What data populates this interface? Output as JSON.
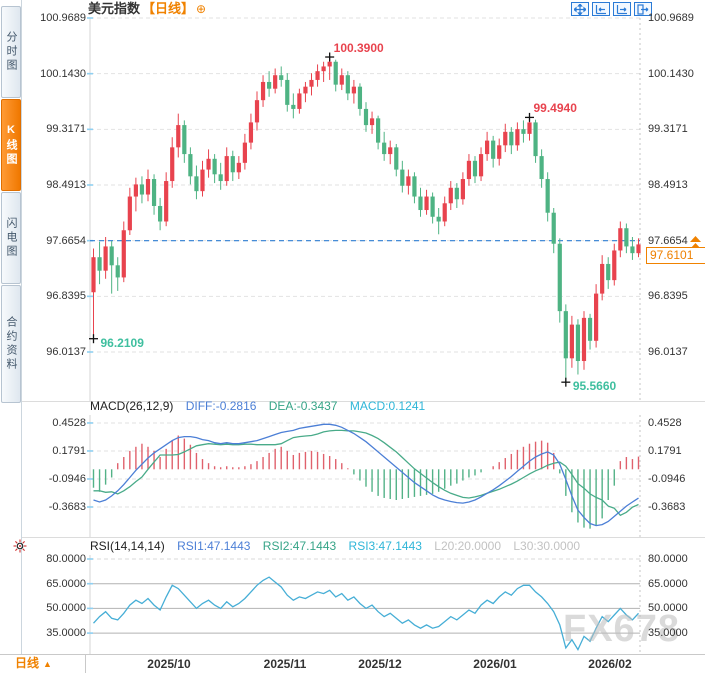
{
  "header": {
    "symbol": "美元指数",
    "period_tag": "【日线】",
    "add_icon": "⊕"
  },
  "sidebar": {
    "tabs": [
      {
        "label": "分时图",
        "active": false
      },
      {
        "label": "K线图",
        "active": true
      },
      {
        "label": "闪电图",
        "active": false
      },
      {
        "label": "合约资料",
        "active": false
      }
    ]
  },
  "toolbar": {
    "icons": [
      "pan",
      "fit-width",
      "fit-height",
      "exit"
    ]
  },
  "main_chart": {
    "y_labels": [
      "100.9689",
      "100.1430",
      "99.3171",
      "98.4913",
      "97.6654",
      "96.8395",
      "96.0137"
    ],
    "current_line_label": "97.6654",
    "last_price_label": "97.6101"
  },
  "x_axis": {
    "labels": [
      "2025/10",
      "2025/11",
      "2025/12",
      "2026/01",
      "2026/02"
    ]
  },
  "footer": {
    "period": "日线",
    "arrow": "▲"
  },
  "watermark": "FX678",
  "colors": {
    "up": "#e8434e",
    "down": "#4eb383",
    "accent": "#f08200",
    "price_line": "#2f7fd4",
    "diff": "#4c7fd6",
    "dea": "#49ab89",
    "rsi": "#46aed6",
    "annotation_low": "#3fbf9f"
  },
  "chart_data": {
    "type": "candlestick",
    "symbol": "美元指数",
    "period": "日线",
    "y_axis_labels": [
      "100.9689",
      "100.1430",
      "99.3171",
      "98.4913",
      "97.6654",
      "96.8395",
      "96.0137"
    ],
    "x_labels": [
      "2025/10",
      "2025/11",
      "2025/12",
      "2026/01",
      "2026/02"
    ],
    "current_price_line": 97.6654,
    "last_price": 97.6101,
    "markers": [
      {
        "index": 0,
        "type": "low",
        "label": "96.2109"
      },
      {
        "index": 39,
        "type": "high",
        "label": "100.3900"
      },
      {
        "index": 72,
        "type": "high",
        "label": "99.4940"
      },
      {
        "index": 78,
        "type": "low",
        "label": "95.5660"
      }
    ],
    "candles": [
      [
        96.9,
        97.55,
        96.2109,
        97.42
      ],
      [
        97.42,
        97.65,
        97.02,
        97.22
      ],
      [
        97.22,
        97.72,
        97.1,
        97.58
      ],
      [
        97.58,
        97.66,
        96.88,
        97.3
      ],
      [
        97.3,
        97.42,
        96.92,
        97.12
      ],
      [
        97.12,
        97.95,
        97.05,
        97.82
      ],
      [
        97.82,
        98.45,
        97.75,
        98.32
      ],
      [
        98.32,
        98.6,
        98.1,
        98.5
      ],
      [
        98.5,
        98.62,
        98.22,
        98.35
      ],
      [
        98.35,
        98.72,
        98.25,
        98.58
      ],
      [
        98.58,
        98.65,
        98.05,
        98.18
      ],
      [
        98.18,
        98.3,
        97.82,
        97.95
      ],
      [
        97.95,
        98.68,
        97.88,
        98.55
      ],
      [
        98.55,
        99.2,
        98.45,
        99.05
      ],
      [
        99.05,
        99.55,
        98.9,
        99.38
      ],
      [
        99.38,
        99.45,
        98.82,
        98.95
      ],
      [
        98.95,
        99.05,
        98.5,
        98.62
      ],
      [
        98.62,
        98.78,
        98.28,
        98.4
      ],
      [
        98.4,
        98.85,
        98.32,
        98.72
      ],
      [
        98.72,
        99.02,
        98.6,
        98.88
      ],
      [
        98.88,
        98.95,
        98.52,
        98.65
      ],
      [
        98.65,
        98.82,
        98.42,
        98.55
      ],
      [
        98.55,
        99.05,
        98.48,
        98.92
      ],
      [
        98.92,
        99.0,
        98.55,
        98.68
      ],
      [
        98.68,
        98.92,
        98.58,
        98.82
      ],
      [
        98.82,
        99.25,
        98.72,
        99.12
      ],
      [
        99.12,
        99.55,
        99.02,
        99.42
      ],
      [
        99.42,
        99.88,
        99.3,
        99.75
      ],
      [
        99.75,
        100.12,
        99.65,
        100.02
      ],
      [
        100.02,
        100.18,
        99.8,
        99.92
      ],
      [
        99.92,
        100.22,
        99.85,
        100.12
      ],
      [
        100.12,
        100.25,
        99.95,
        100.05
      ],
      [
        100.05,
        100.15,
        99.58,
        99.68
      ],
      [
        99.68,
        99.85,
        99.48,
        99.62
      ],
      [
        99.62,
        99.92,
        99.55,
        99.85
      ],
      [
        99.85,
        100.02,
        99.72,
        99.95
      ],
      [
        99.95,
        100.15,
        99.82,
        100.05
      ],
      [
        100.05,
        100.28,
        99.95,
        100.18
      ],
      [
        100.18,
        100.32,
        100.02,
        100.25
      ],
      [
        100.25,
        100.39,
        100.05,
        100.32
      ],
      [
        100.32,
        100.35,
        99.88,
        99.98
      ],
      [
        99.98,
        100.22,
        99.9,
        100.12
      ],
      [
        100.12,
        100.18,
        99.75,
        99.85
      ],
      [
        99.85,
        100.05,
        99.7,
        99.95
      ],
      [
        99.95,
        100.0,
        99.52,
        99.62
      ],
      [
        99.62,
        99.72,
        99.28,
        99.38
      ],
      [
        99.38,
        99.58,
        99.25,
        99.48
      ],
      [
        99.48,
        99.52,
        99.02,
        99.12
      ],
      [
        99.12,
        99.28,
        98.85,
        98.95
      ],
      [
        98.95,
        99.15,
        98.8,
        99.05
      ],
      [
        99.05,
        99.1,
        98.62,
        98.72
      ],
      [
        98.72,
        98.85,
        98.38,
        98.48
      ],
      [
        98.48,
        98.72,
        98.35,
        98.62
      ],
      [
        98.62,
        98.68,
        98.22,
        98.32
      ],
      [
        98.32,
        98.45,
        98.02,
        98.12
      ],
      [
        98.12,
        98.42,
        98.05,
        98.32
      ],
      [
        98.32,
        98.38,
        97.92,
        98.02
      ],
      [
        98.02,
        98.15,
        97.76,
        97.95
      ],
      [
        97.95,
        98.32,
        97.88,
        98.22
      ],
      [
        98.22,
        98.55,
        98.12,
        98.45
      ],
      [
        98.45,
        98.52,
        98.15,
        98.28
      ],
      [
        98.28,
        98.68,
        98.2,
        98.58
      ],
      [
        98.58,
        98.95,
        98.48,
        98.85
      ],
      [
        98.85,
        98.92,
        98.52,
        98.62
      ],
      [
        98.62,
        99.05,
        98.55,
        98.95
      ],
      [
        98.95,
        99.28,
        98.85,
        99.15
      ],
      [
        99.15,
        99.22,
        98.75,
        98.88
      ],
      [
        98.88,
        99.18,
        98.78,
        99.08
      ],
      [
        99.08,
        99.4,
        98.98,
        99.28
      ],
      [
        99.28,
        99.35,
        98.95,
        99.08
      ],
      [
        99.08,
        99.42,
        99.0,
        99.32
      ],
      [
        99.32,
        99.45,
        99.12,
        99.25
      ],
      [
        99.25,
        99.494,
        99.15,
        99.42
      ],
      [
        99.42,
        99.46,
        98.82,
        98.92
      ],
      [
        98.92,
        99.02,
        98.45,
        98.58
      ],
      [
        98.58,
        98.68,
        97.95,
        98.08
      ],
      [
        98.08,
        98.15,
        97.48,
        97.62
      ],
      [
        97.62,
        97.7,
        96.45,
        96.62
      ],
      [
        96.62,
        96.72,
        95.566,
        95.92
      ],
      [
        95.92,
        96.55,
        95.78,
        96.42
      ],
      [
        96.42,
        96.5,
        95.68,
        95.88
      ],
      [
        95.88,
        96.62,
        95.75,
        96.52
      ],
      [
        96.52,
        96.58,
        96.05,
        96.18
      ],
      [
        96.18,
        97.02,
        96.08,
        96.88
      ],
      [
        96.88,
        97.45,
        96.78,
        97.32
      ],
      [
        97.32,
        97.42,
        96.95,
        97.08
      ],
      [
        97.08,
        97.62,
        97.0,
        97.52
      ],
      [
        97.52,
        97.95,
        97.42,
        97.85
      ],
      [
        97.85,
        97.92,
        97.48,
        97.58
      ],
      [
        97.58,
        97.72,
        97.38,
        97.48
      ],
      [
        97.48,
        97.7,
        97.42,
        97.6101
      ]
    ],
    "macd": {
      "title": "MACD(26,12,9)",
      "diff_label": "DIFF:-0.2816",
      "dea_label": "DEA:-0.3437",
      "macd_label": "MACD:0.1241",
      "y_labels": [
        "0.4528",
        "0.1791",
        "-0.0946",
        "-0.3683"
      ],
      "diff": [
        -0.3,
        -0.32,
        -0.3,
        -0.26,
        -0.21,
        -0.15,
        -0.08,
        -0.01,
        0.05,
        0.11,
        0.16,
        0.2,
        0.24,
        0.28,
        0.31,
        0.32,
        0.32,
        0.31,
        0.29,
        0.28,
        0.26,
        0.25,
        0.26,
        0.25,
        0.25,
        0.26,
        0.27,
        0.28,
        0.3,
        0.32,
        0.34,
        0.36,
        0.37,
        0.38,
        0.4,
        0.41,
        0.42,
        0.43,
        0.44,
        0.44,
        0.43,
        0.41,
        0.38,
        0.35,
        0.31,
        0.27,
        0.22,
        0.17,
        0.12,
        0.07,
        0.02,
        -0.03,
        -0.08,
        -0.13,
        -0.17,
        -0.21,
        -0.25,
        -0.28,
        -0.3,
        -0.315,
        -0.325,
        -0.33,
        -0.32,
        -0.3,
        -0.27,
        -0.235,
        -0.2,
        -0.16,
        -0.115,
        -0.07,
        -0.02,
        0.03,
        0.08,
        0.12,
        0.15,
        0.17,
        0.14,
        0.05,
        -0.1,
        -0.26,
        -0.4,
        -0.47,
        -0.53,
        -0.55,
        -0.54,
        -0.51,
        -0.46,
        -0.41,
        -0.36,
        -0.32,
        -0.2816
      ],
      "hist": [
        -0.18,
        -0.22,
        -0.15,
        -0.08,
        0.06,
        0.12,
        0.18,
        0.22,
        0.25,
        0.22,
        0.18,
        0.12,
        0.2,
        0.28,
        0.33,
        0.3,
        0.24,
        0.16,
        0.1,
        0.06,
        0.03,
        0.02,
        0.03,
        0.02,
        0.02,
        0.03,
        0.05,
        0.08,
        0.12,
        0.16,
        0.2,
        0.22,
        0.18,
        0.14,
        0.16,
        0.17,
        0.18,
        0.17,
        0.15,
        0.13,
        0.1,
        0.06,
        0.01,
        -0.05,
        -0.11,
        -0.17,
        -0.22,
        -0.26,
        -0.28,
        -0.29,
        -0.3,
        -0.29,
        -0.28,
        -0.27,
        -0.26,
        -0.25,
        -0.24,
        -0.22,
        -0.19,
        -0.16,
        -0.14,
        -0.11,
        -0.08,
        -0.06,
        -0.03,
        0.0,
        0.03,
        0.07,
        0.11,
        0.15,
        0.19,
        0.22,
        0.25,
        0.27,
        0.28,
        0.26,
        0.16,
        -0.04,
        -0.26,
        -0.42,
        -0.52,
        -0.57,
        -0.58,
        -0.55,
        -0.48,
        -0.3,
        -0.16,
        0.08,
        0.12,
        0.1,
        0.1241
      ]
    },
    "rsi": {
      "title": "RSI(14,14,14)",
      "rsi1_label": "RSI1:47.1443",
      "rsi2_label": "RSI2:47.1443",
      "rsi3_label": "RSI3:47.1443",
      "l20_label": "L20:20.0000",
      "l30_label": "L30:30.0000",
      "y_labels": [
        "80.0000",
        "65.0000",
        "50.0000",
        "35.0000"
      ],
      "values": [
        41,
        45,
        48,
        44,
        43,
        47,
        52,
        55,
        53,
        56,
        52,
        49,
        57,
        64,
        62,
        58,
        54,
        50,
        53,
        55,
        52,
        50,
        54,
        51,
        53,
        56,
        60,
        64,
        67,
        69,
        66,
        63,
        58,
        55,
        57,
        56,
        58,
        60,
        59,
        61,
        57,
        59,
        55,
        57,
        53,
        50,
        52,
        48,
        45,
        47,
        44,
        41,
        43,
        40,
        38,
        40,
        38,
        39,
        42,
        45,
        43,
        46,
        49,
        47,
        52,
        55,
        53,
        57,
        60,
        58,
        62,
        64,
        64,
        60,
        57,
        53,
        48,
        40,
        26,
        31,
        25,
        33,
        30,
        38,
        45,
        42,
        46,
        50,
        46,
        43,
        47
      ]
    }
  }
}
